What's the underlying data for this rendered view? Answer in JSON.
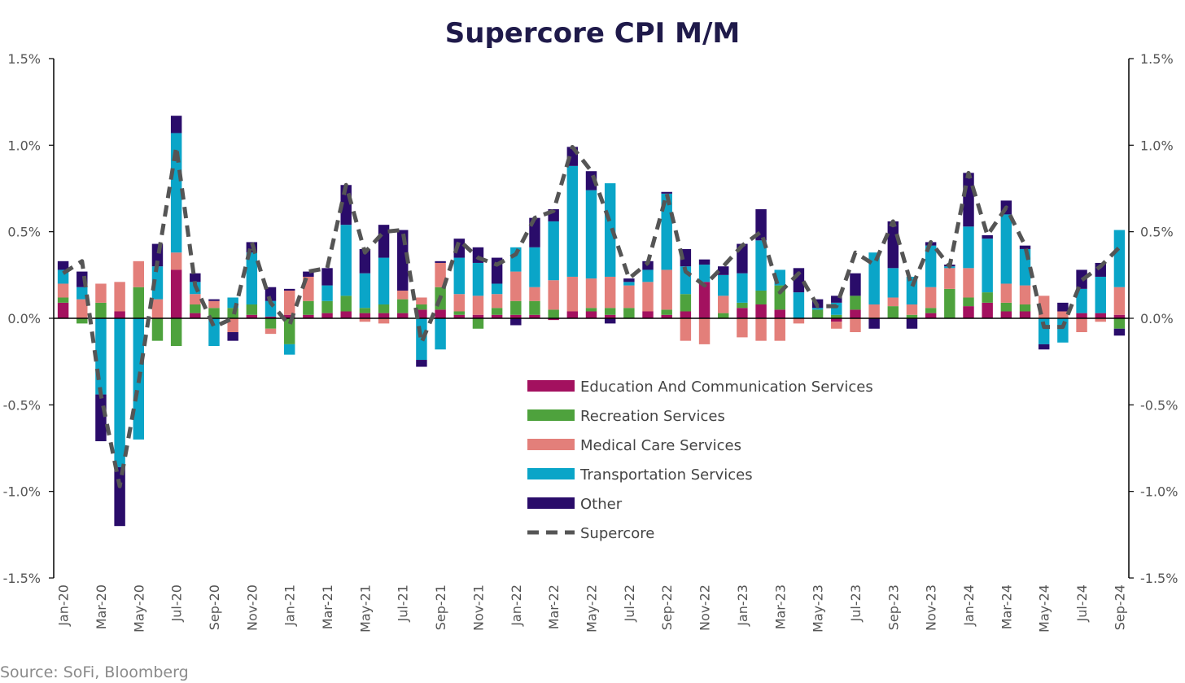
{
  "source_note": "Source: SoFi, Bloomberg",
  "chart_data": {
    "type": "bar",
    "stacked": true,
    "title": "Supercore CPI M/M",
    "ylim": [
      -1.5,
      1.5
    ],
    "y_ticks": [
      "1.5%",
      "1.0%",
      "0.5%",
      "0.0%",
      "-0.5%",
      "-1.0%",
      "-1.5%"
    ],
    "y_tick_values": [
      1.5,
      1.0,
      0.5,
      0.0,
      -0.5,
      -1.0,
      -1.5
    ],
    "secondary_y_ticks": [
      "1.5%",
      "1.0%",
      "0.5%",
      "0.0%",
      "-0.5%",
      "-1.0%",
      "-1.5%"
    ],
    "legend_position": "center",
    "categories": [
      "Jan-20",
      "Feb-20",
      "Mar-20",
      "Apr-20",
      "May-20",
      "Jun-20",
      "Jul-20",
      "Aug-20",
      "Sep-20",
      "Oct-20",
      "Nov-20",
      "Dec-20",
      "Jan-21",
      "Feb-21",
      "Mar-21",
      "Apr-21",
      "May-21",
      "Jun-21",
      "Jul-21",
      "Aug-21",
      "Sep-21",
      "Oct-21",
      "Nov-21",
      "Dec-21",
      "Jan-22",
      "Feb-22",
      "Mar-22",
      "Apr-22",
      "May-22",
      "Jun-22",
      "Jul-22",
      "Aug-22",
      "Sep-22",
      "Oct-22",
      "Nov-22",
      "Dec-22",
      "Jan-23",
      "Feb-23",
      "Mar-23",
      "Apr-23",
      "May-23",
      "Jun-23",
      "Jul-23",
      "Aug-23",
      "Sep-23",
      "Oct-23",
      "Nov-23",
      "Dec-23",
      "Jan-24",
      "Feb-24",
      "Mar-24",
      "Apr-24",
      "May-24",
      "Jun-24",
      "Jul-24",
      "Aug-24",
      "Sep-24"
    ],
    "x_tick_labels": [
      "Jan-20",
      "Mar-20",
      "May-20",
      "Jul-20",
      "Sep-20",
      "Nov-20",
      "Jan-21",
      "Mar-21",
      "May-21",
      "Jul-21",
      "Sep-21",
      "Nov-21",
      "Jan-22",
      "Mar-22",
      "May-22",
      "Jul-22",
      "Sep-22",
      "Nov-22",
      "Jan-23",
      "Mar-23",
      "May-23",
      "Jul-23",
      "Sep-23",
      "Nov-23",
      "Jan-24",
      "Mar-24",
      "May-24",
      "Jul-24",
      "Sep-24"
    ],
    "series": [
      {
        "name": "Education And Communication Services",
        "color": "#a3115f",
        "values": [
          0.09,
          0.0,
          0.0,
          0.04,
          0.0,
          0.0,
          0.28,
          0.03,
          0.0,
          0.0,
          0.02,
          0.01,
          0.02,
          0.02,
          0.03,
          0.04,
          0.03,
          0.03,
          0.03,
          0.05,
          0.05,
          0.02,
          0.02,
          0.02,
          0.02,
          0.02,
          -0.01,
          0.04,
          0.04,
          0.02,
          0.0,
          0.04,
          0.02,
          0.04,
          0.21,
          0.0,
          0.06,
          0.08,
          0.05,
          0.0,
          0.0,
          -0.02,
          0.05,
          0.0,
          0.0,
          0.0,
          0.03,
          0.0,
          0.07,
          0.09,
          0.04,
          0.04,
          0.0,
          0.0,
          0.03,
          0.03,
          0.02
        ]
      },
      {
        "name": "Recreation Services",
        "color": "#4ea23d",
        "values": [
          0.03,
          -0.03,
          0.09,
          0.0,
          0.18,
          -0.13,
          -0.16,
          0.05,
          0.06,
          0.06,
          0.06,
          -0.06,
          -0.15,
          0.08,
          0.07,
          0.09,
          0.03,
          0.05,
          0.08,
          0.03,
          0.13,
          0.02,
          -0.06,
          0.04,
          0.08,
          0.08,
          0.05,
          0.0,
          0.02,
          0.04,
          0.06,
          0.0,
          0.03,
          0.1,
          0.0,
          0.03,
          0.03,
          0.08,
          0.14,
          0.0,
          0.05,
          0.02,
          0.08,
          0.0,
          0.07,
          0.02,
          0.03,
          0.17,
          0.05,
          0.06,
          0.05,
          0.04,
          0.0,
          0.0,
          0.0,
          0.0,
          -0.06
        ]
      },
      {
        "name": "Medical Care Services",
        "color": "#e37f7a",
        "values": [
          0.08,
          0.11,
          0.11,
          0.17,
          0.15,
          0.11,
          0.1,
          0.06,
          0.04,
          -0.08,
          0.0,
          -0.03,
          0.14,
          0.14,
          0.0,
          0.0,
          -0.02,
          -0.03,
          0.05,
          0.04,
          0.14,
          0.1,
          0.11,
          0.08,
          0.17,
          0.08,
          0.17,
          0.2,
          0.17,
          0.18,
          0.13,
          0.17,
          0.23,
          -0.13,
          -0.15,
          0.1,
          -0.11,
          -0.13,
          -0.13,
          -0.03,
          0.0,
          -0.04,
          -0.08,
          0.08,
          0.05,
          0.06,
          0.12,
          0.12,
          0.17,
          0.0,
          0.11,
          0.11,
          0.13,
          0.04,
          -0.08,
          -0.02,
          0.16
        ]
      },
      {
        "name": "Transportation Services",
        "color": "#0aa5c8",
        "values": [
          0.08,
          0.07,
          -0.44,
          -0.86,
          -0.7,
          0.19,
          0.69,
          0.07,
          -0.16,
          0.06,
          0.3,
          0.09,
          -0.06,
          0.0,
          0.09,
          0.41,
          0.2,
          0.27,
          0.0,
          -0.24,
          -0.18,
          0.21,
          0.19,
          0.06,
          0.14,
          0.23,
          0.34,
          0.64,
          0.51,
          0.54,
          0.02,
          0.07,
          0.44,
          0.16,
          0.1,
          0.12,
          0.17,
          0.29,
          0.09,
          0.15,
          0.01,
          0.07,
          0.0,
          0.3,
          0.17,
          0.16,
          0.24,
          0.01,
          0.24,
          0.31,
          0.4,
          0.21,
          -0.15,
          -0.14,
          0.14,
          0.21,
          0.33
        ]
      },
      {
        "name": "Other",
        "color": "#2a0c6a",
        "values": [
          0.05,
          0.09,
          -0.27,
          -0.34,
          0.0,
          0.13,
          0.1,
          0.05,
          0.01,
          -0.05,
          0.06,
          0.08,
          0.01,
          0.03,
          0.1,
          0.23,
          0.14,
          0.19,
          0.35,
          -0.04,
          0.01,
          0.11,
          0.09,
          0.15,
          -0.04,
          0.17,
          0.07,
          0.11,
          0.11,
          -0.03,
          0.02,
          0.05,
          0.01,
          0.1,
          0.03,
          0.05,
          0.17,
          0.18,
          0.0,
          0.14,
          0.05,
          0.04,
          0.13,
          -0.06,
          0.27,
          -0.06,
          0.02,
          0.01,
          0.31,
          0.02,
          0.08,
          0.02,
          -0.03,
          0.05,
          0.11,
          0.08,
          -0.04
        ]
      },
      {
        "name": "Supercore",
        "color": "#555555",
        "type": "line",
        "dashed": true,
        "values": [
          0.26,
          0.33,
          -0.44,
          -0.97,
          -0.37,
          0.33,
          0.99,
          0.19,
          -0.05,
          0.0,
          0.44,
          0.09,
          -0.04,
          0.27,
          0.29,
          0.77,
          0.38,
          0.5,
          0.51,
          -0.14,
          0.12,
          0.45,
          0.35,
          0.31,
          0.37,
          0.58,
          0.62,
          0.99,
          0.85,
          0.55,
          0.23,
          0.32,
          0.72,
          0.27,
          0.19,
          0.3,
          0.42,
          0.5,
          0.15,
          0.26,
          0.07,
          0.07,
          0.38,
          0.31,
          0.56,
          0.18,
          0.44,
          0.3,
          0.84,
          0.48,
          0.64,
          0.42,
          -0.05,
          -0.05,
          0.22,
          0.3,
          0.41
        ]
      }
    ]
  }
}
